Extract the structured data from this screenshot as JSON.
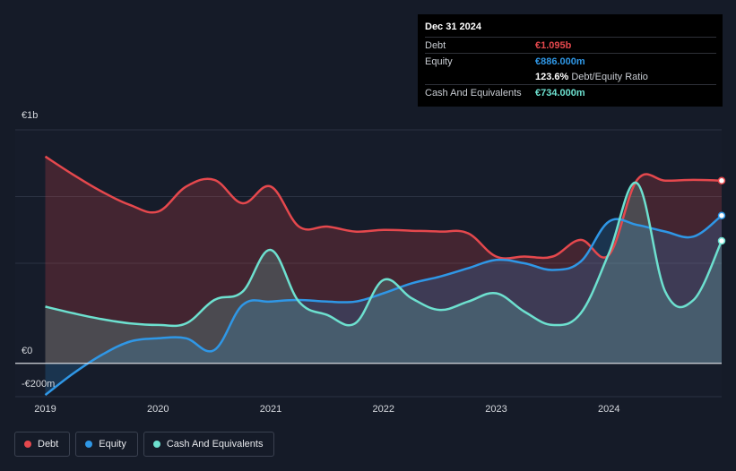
{
  "tooltip": {
    "date": "Dec 31 2024",
    "debt_label": "Debt",
    "debt_value": "€1.095b",
    "equity_label": "Equity",
    "equity_value": "€886.000m",
    "ratio_value": "123.6%",
    "ratio_label": "Debt/Equity Ratio",
    "cash_label": "Cash And Equivalents",
    "cash_value": "€734.000m"
  },
  "legend": [
    {
      "label": "Debt",
      "color": "#e5484d"
    },
    {
      "label": "Equity",
      "color": "#2f97e6"
    },
    {
      "label": "Cash And Equivalents",
      "color": "#6de0cf"
    }
  ],
  "chart_data": {
    "type": "area",
    "y_tick_labels": [
      {
        "value": 1000,
        "label": "€1b"
      },
      {
        "value": 0,
        "label": "€0"
      },
      {
        "value": -200,
        "label": "-€200m"
      }
    ],
    "x_tick_labels": [
      {
        "value": 2019,
        "label": "2019"
      },
      {
        "value": 2020,
        "label": "2020"
      },
      {
        "value": 2021,
        "label": "2021"
      },
      {
        "value": 2022,
        "label": "2022"
      },
      {
        "value": 2023,
        "label": "2023"
      },
      {
        "value": 2024,
        "label": "2024"
      }
    ],
    "xlim": [
      2018.98,
      2025.0
    ],
    "ylim": [
      -200,
      1400
    ],
    "colors": {
      "debt": "#e5484d",
      "equity": "#2f97e6",
      "cash": "#6de0cf"
    },
    "series": [
      {
        "name": "Debt",
        "key": "debt",
        "x": [
          2019.0,
          2019.25,
          2019.5,
          2019.75,
          2020.0,
          2020.25,
          2020.5,
          2020.75,
          2021.0,
          2021.25,
          2021.5,
          2021.75,
          2022.0,
          2022.25,
          2022.5,
          2022.75,
          2023.0,
          2023.25,
          2023.5,
          2023.75,
          2024.0,
          2024.25,
          2024.5,
          2024.75,
          2025.0
        ],
        "values": [
          1240,
          1130,
          1030,
          950,
          910,
          1060,
          1100,
          960,
          1060,
          820,
          820,
          790,
          800,
          795,
          790,
          780,
          640,
          640,
          640,
          740,
          650,
          1100,
          1095,
          1100,
          1095
        ]
      },
      {
        "name": "Equity",
        "key": "equity",
        "x": [
          2019.0,
          2019.25,
          2019.5,
          2019.75,
          2020.0,
          2020.25,
          2020.5,
          2020.75,
          2021.0,
          2021.25,
          2021.5,
          2021.75,
          2022.0,
          2022.25,
          2022.5,
          2022.75,
          2023.0,
          2023.25,
          2023.5,
          2023.75,
          2024.0,
          2024.25,
          2024.5,
          2024.75,
          2025.0
        ],
        "values": [
          -190,
          -60,
          50,
          130,
          150,
          150,
          80,
          350,
          370,
          380,
          370,
          370,
          420,
          480,
          520,
          570,
          620,
          600,
          560,
          610,
          850,
          830,
          790,
          760,
          886
        ]
      },
      {
        "name": "Cash And Equivalents",
        "key": "cash",
        "x": [
          2019.0,
          2019.25,
          2019.5,
          2019.75,
          2020.0,
          2020.25,
          2020.5,
          2020.75,
          2021.0,
          2021.25,
          2021.5,
          2021.75,
          2022.0,
          2022.25,
          2022.5,
          2022.75,
          2023.0,
          2023.25,
          2023.5,
          2023.75,
          2024.0,
          2024.25,
          2024.5,
          2024.75,
          2025.0
        ],
        "values": [
          340,
          300,
          265,
          240,
          230,
          240,
          380,
          430,
          680,
          370,
          290,
          240,
          500,
          390,
          320,
          370,
          420,
          310,
          230,
          300,
          660,
          1080,
          430,
          380,
          734
        ]
      }
    ]
  }
}
